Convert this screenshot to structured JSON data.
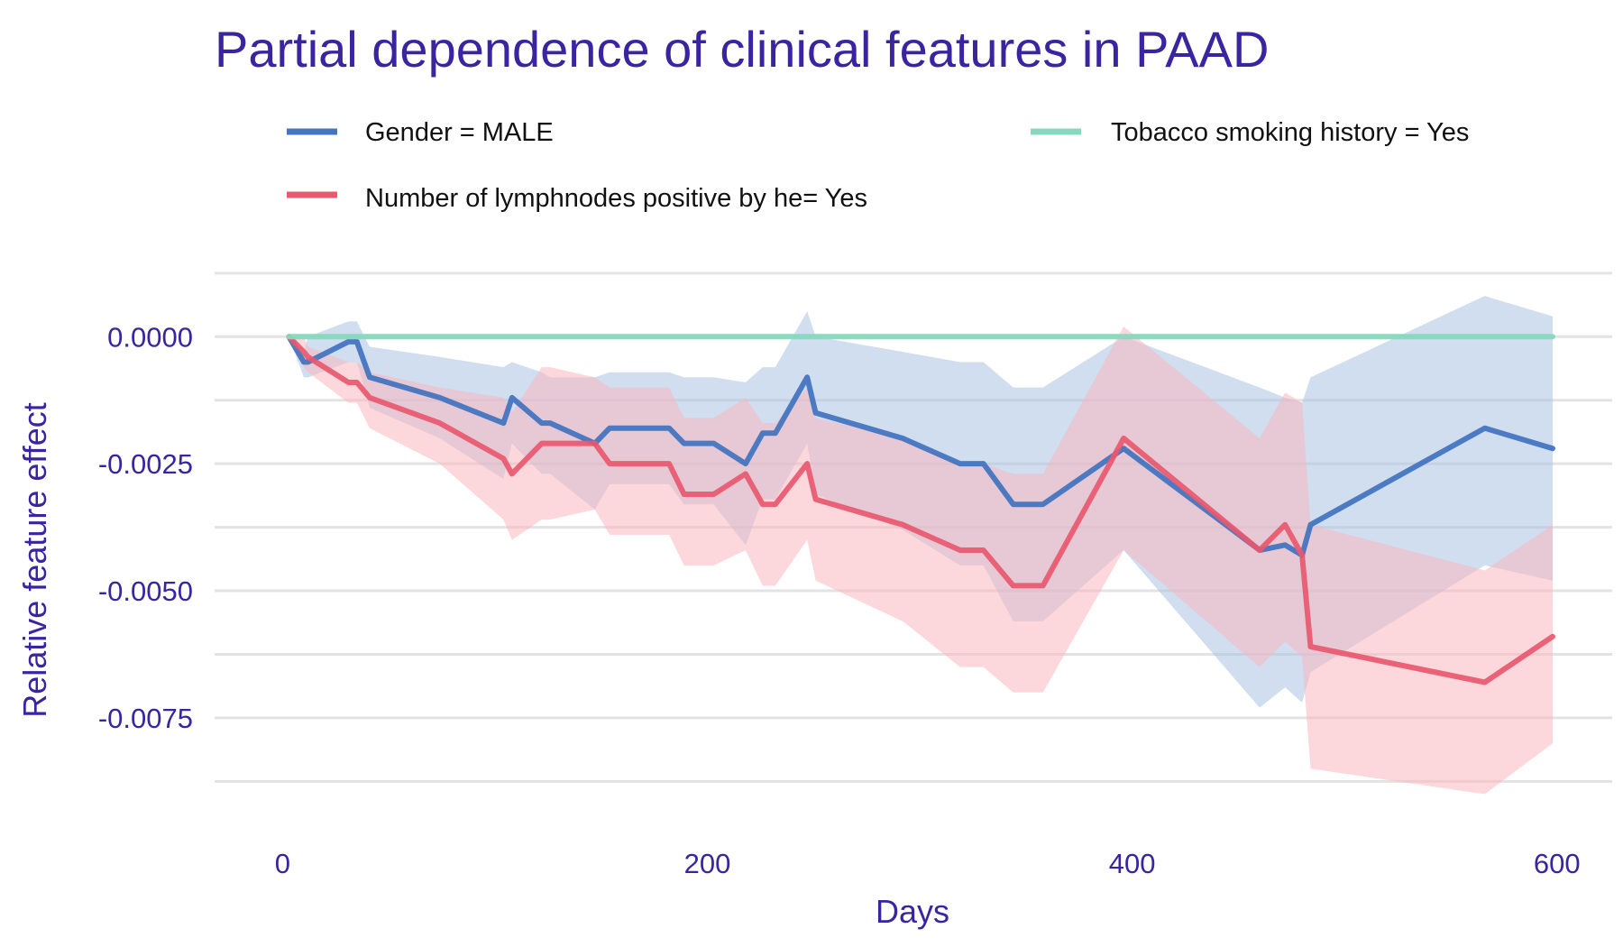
{
  "chart_data": {
    "type": "line",
    "title": "Partial dependence of clinical features in PAAD",
    "xlabel": "Days",
    "ylabel": "Relative feature effect",
    "xlim": [
      -32,
      626
    ],
    "ylim": [
      -0.0094,
      0.0013
    ],
    "x_ticks": [
      0,
      200,
      400,
      600
    ],
    "x_tick_labels": [
      "0",
      "200",
      "400",
      "600"
    ],
    "y_ticks": [
      0.0,
      -0.0025,
      -0.005,
      -0.0075
    ],
    "y_tick_labels": [
      "0.0000",
      "-0.0025",
      "-0.0050",
      "-0.0075"
    ],
    "y_minor_grid": [
      0.00125,
      -0.00125,
      -0.00375,
      -0.00625,
      -0.00875
    ],
    "grid": true,
    "legend_position": "top",
    "series": [
      {
        "name": "Gender = MALE",
        "color": "#4575c0",
        "band_color": "#aac2e2",
        "x": [
          3,
          10,
          12,
          31,
          35,
          41,
          74,
          104,
          108,
          122,
          126,
          147,
          154,
          182,
          189,
          203,
          218,
          226,
          232,
          247,
          251,
          292,
          319,
          330,
          344,
          358,
          396,
          460,
          472,
          480,
          484,
          566,
          598
        ],
        "y": [
          0.0,
          -0.0005,
          -0.0005,
          -0.0001,
          -0.0001,
          -0.0008,
          -0.0012,
          -0.0017,
          -0.0012,
          -0.0017,
          -0.0017,
          -0.0021,
          -0.0018,
          -0.0018,
          -0.0021,
          -0.0021,
          -0.0025,
          -0.0019,
          -0.0019,
          -0.0008,
          -0.0015,
          -0.002,
          -0.0025,
          -0.0025,
          -0.0033,
          -0.0033,
          -0.0022,
          -0.0042,
          -0.0041,
          -0.0043,
          -0.0037,
          -0.0018,
          -0.0022
        ],
        "upper": [
          0.0,
          -0.0003,
          0.0,
          0.0003,
          0.0003,
          -0.0002,
          -0.0004,
          -0.0006,
          -0.0005,
          -0.0007,
          -0.0008,
          -0.0008,
          -0.0007,
          -0.0007,
          -0.0008,
          -0.0008,
          -0.0009,
          -0.0006,
          -0.0006,
          0.0005,
          0.0,
          -0.0003,
          -0.0005,
          -0.0005,
          -0.001,
          -0.001,
          0.0,
          -0.001,
          -0.0012,
          -0.0013,
          -0.0008,
          0.0008,
          0.0004
        ],
        "lower": [
          0.0,
          -0.0008,
          -0.0008,
          -0.0005,
          -0.0005,
          -0.0014,
          -0.002,
          -0.0028,
          -0.0021,
          -0.0027,
          -0.0027,
          -0.0034,
          -0.0029,
          -0.0029,
          -0.0033,
          -0.0033,
          -0.0041,
          -0.0032,
          -0.0032,
          -0.0021,
          -0.0031,
          -0.0038,
          -0.0045,
          -0.0045,
          -0.0056,
          -0.0056,
          -0.0042,
          -0.0073,
          -0.0069,
          -0.0072,
          -0.0066,
          -0.0045,
          -0.0048
        ]
      },
      {
        "name": "Number of lymphnodes positive by he= Yes",
        "color": "#e8586e",
        "band_color": "#f9b6c0",
        "x": [
          3,
          10,
          12,
          31,
          35,
          41,
          74,
          104,
          108,
          122,
          126,
          147,
          154,
          182,
          189,
          203,
          218,
          226,
          232,
          247,
          251,
          292,
          319,
          330,
          344,
          358,
          396,
          460,
          472,
          480,
          484,
          566,
          598
        ],
        "y": [
          0.0,
          -0.0003,
          -0.0004,
          -0.0009,
          -0.0009,
          -0.0012,
          -0.0017,
          -0.0024,
          -0.0027,
          -0.0021,
          -0.0021,
          -0.0021,
          -0.0025,
          -0.0025,
          -0.0031,
          -0.0031,
          -0.0027,
          -0.0033,
          -0.0033,
          -0.0025,
          -0.0032,
          -0.0037,
          -0.0042,
          -0.0042,
          -0.0049,
          -0.0049,
          -0.002,
          -0.0042,
          -0.0037,
          -0.0043,
          -0.0061,
          -0.0068,
          -0.0059
        ],
        "upper": [
          0.0,
          0.0,
          -0.0002,
          -0.0005,
          -0.0005,
          -0.0007,
          -0.001,
          -0.0012,
          -0.0015,
          -0.0006,
          -0.0006,
          -0.0008,
          -0.001,
          -0.001,
          -0.0016,
          -0.0016,
          -0.0012,
          -0.0017,
          -0.0017,
          -0.001,
          -0.0016,
          -0.002,
          -0.0025,
          -0.0025,
          -0.0027,
          -0.0027,
          0.0002,
          -0.002,
          -0.0011,
          -0.0013,
          -0.0037,
          -0.0046,
          -0.0037
        ],
        "lower": [
          0.0,
          -0.0006,
          -0.0007,
          -0.0013,
          -0.0013,
          -0.0018,
          -0.0025,
          -0.0036,
          -0.004,
          -0.0036,
          -0.0036,
          -0.0034,
          -0.0039,
          -0.0039,
          -0.0045,
          -0.0045,
          -0.0042,
          -0.0049,
          -0.0049,
          -0.004,
          -0.0048,
          -0.0056,
          -0.0065,
          -0.0065,
          -0.007,
          -0.007,
          -0.0042,
          -0.0065,
          -0.006,
          -0.0063,
          -0.0085,
          -0.009,
          -0.008
        ]
      },
      {
        "name": "Tobacco smoking history = Yes",
        "color": "#86d9be",
        "band_color": "#86d9be",
        "x": [
          3,
          598
        ],
        "y": [
          0.0,
          0.0
        ],
        "upper": [
          0.0,
          0.0
        ],
        "lower": [
          0.0,
          0.0
        ]
      }
    ]
  }
}
